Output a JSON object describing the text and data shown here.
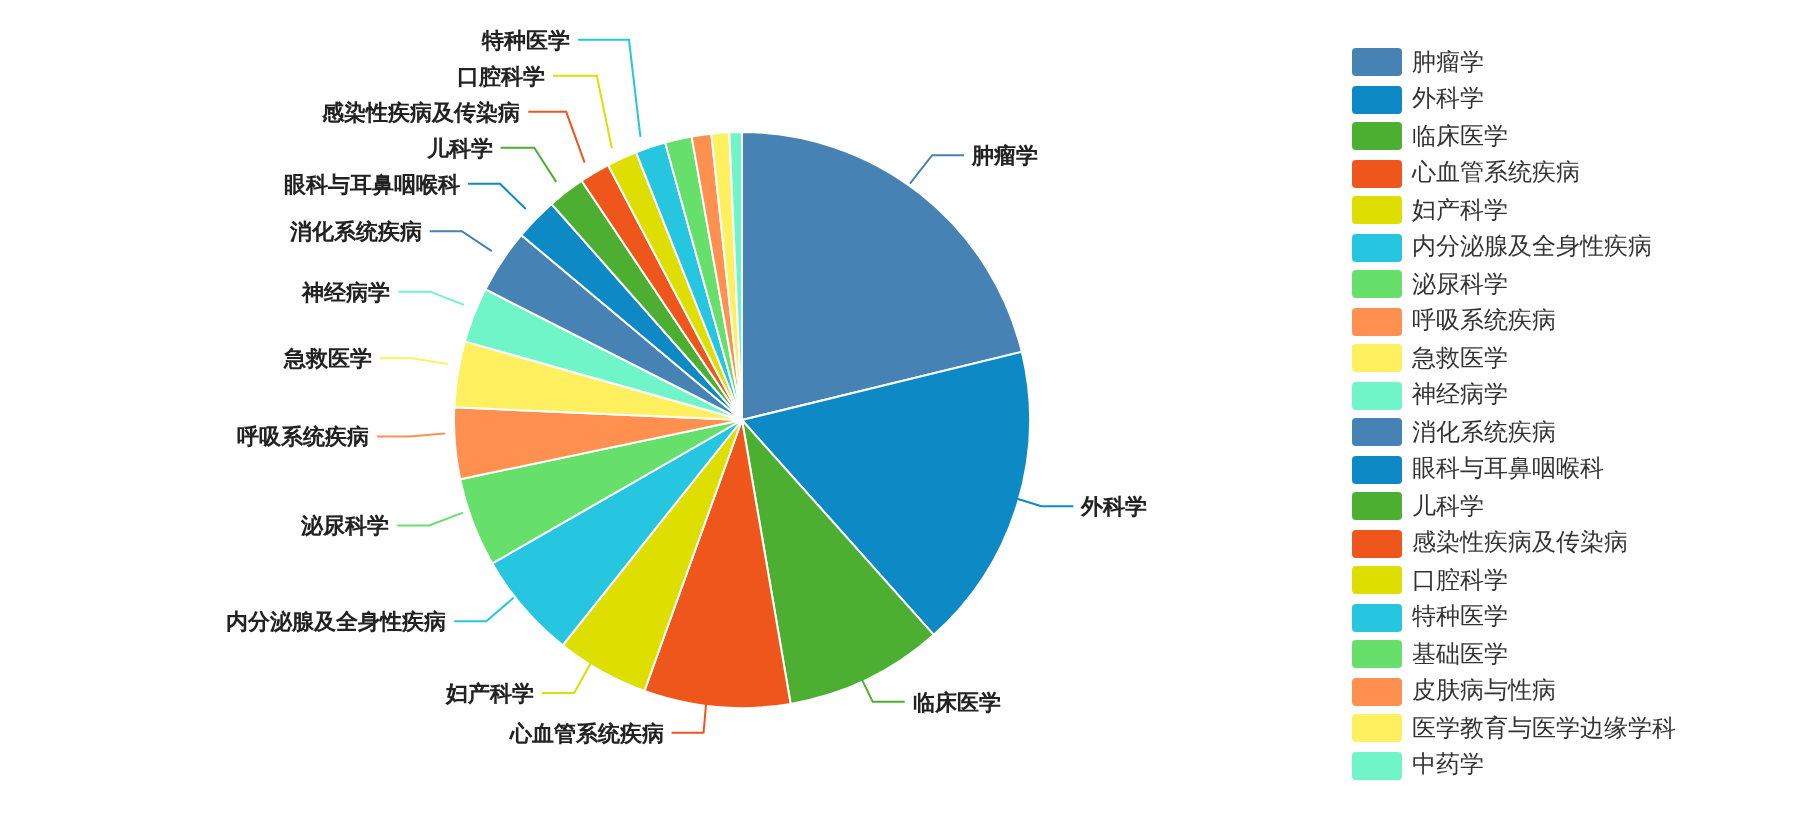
{
  "chart_data": {
    "type": "pie",
    "categories": [
      "肿瘤学",
      "外科学",
      "临床医学",
      "心血管系统疾病",
      "妇产科学",
      "内分泌腺及全身性疾病",
      "泌尿科学",
      "呼吸系统疾病",
      "急救医学",
      "神经病学",
      "消化系统疾病",
      "眼科与耳鼻咽喉科",
      "儿科学",
      "感染性疾病及传染病",
      "口腔科学",
      "特种医学",
      "基础医学",
      "皮肤病与性病",
      "医学教育与医学边缘学科",
      "中药学"
    ],
    "values": [
      21.2,
      17.2,
      8.9,
      8.2,
      5.2,
      6,
      5,
      4,
      3.7,
      3.1,
      3.6,
      2.4,
      2.1,
      1.7,
      1.7,
      1.7,
      1.5,
      1.1,
      1,
      0.7
    ],
    "colors": [
      "#4682b4",
      "#0d8ac6",
      "#4caf32",
      "#ef561c",
      "#dede00",
      "#26c6e0",
      "#66e06a",
      "#ff9050",
      "#fff060",
      "#70f5c8",
      "#4682b4",
      "#0d8ac6",
      "#4caf32",
      "#ef561c",
      "#dede00",
      "#26c6e0",
      "#66e06a",
      "#ff9050",
      "#fff060",
      "#70f5c8"
    ],
    "legend": "right"
  }
}
